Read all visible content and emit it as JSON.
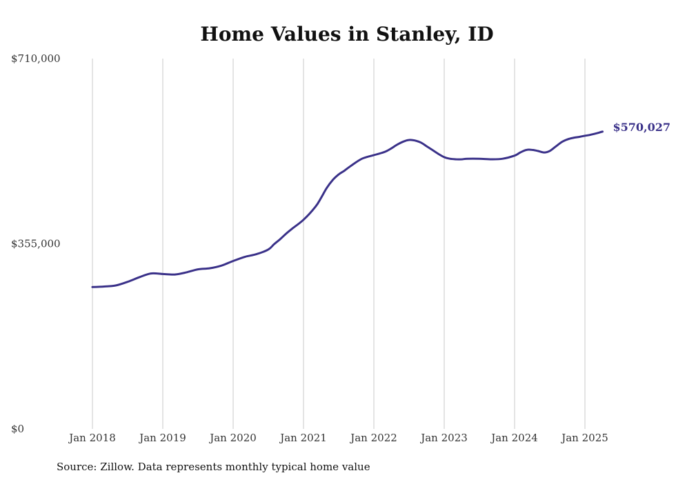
{
  "chart_data": {
    "type": "line",
    "title": "Home Values in Stanley, ID",
    "xlabel": "",
    "ylabel": "",
    "ylim": [
      0,
      710000
    ],
    "y_ticks": [
      {
        "value": 0,
        "label": "$0"
      },
      {
        "value": 355000,
        "label": "$355,000"
      },
      {
        "value": 710000,
        "label": "$710,000"
      }
    ],
    "x_ticks": [
      {
        "value": 2018.0,
        "label": "Jan 2018"
      },
      {
        "value": 2019.0,
        "label": "Jan 2019"
      },
      {
        "value": 2020.0,
        "label": "Jan 2020"
      },
      {
        "value": 2021.0,
        "label": "Jan 2021"
      },
      {
        "value": 2022.0,
        "label": "Jan 2022"
      },
      {
        "value": 2023.0,
        "label": "Jan 2023"
      },
      {
        "value": 2024.0,
        "label": "Jan 2024"
      },
      {
        "value": 2025.0,
        "label": "Jan 2025"
      }
    ],
    "xlim": [
      2018.0,
      2025.25
    ],
    "grid": {
      "vertical": true,
      "horizontal": false
    },
    "line_color": "#3a3189",
    "end_label": "$570,027",
    "x": [
      2018.0,
      2018.17,
      2018.33,
      2018.5,
      2018.67,
      2018.83,
      2019.0,
      2019.17,
      2019.33,
      2019.5,
      2019.67,
      2019.83,
      2020.0,
      2020.17,
      2020.33,
      2020.5,
      2020.58,
      2020.67,
      2020.75,
      2020.83,
      2021.0,
      2021.17,
      2021.25,
      2021.33,
      2021.42,
      2021.5,
      2021.58,
      2021.67,
      2021.83,
      2022.0,
      2022.08,
      2022.17,
      2022.25,
      2022.33,
      2022.42,
      2022.5,
      2022.58,
      2022.67,
      2022.75,
      2022.83,
      2022.92,
      2023.0,
      2023.08,
      2023.17,
      2023.25,
      2023.33,
      2023.5,
      2023.67,
      2023.83,
      2024.0,
      2024.08,
      2024.17,
      2024.25,
      2024.33,
      2024.42,
      2024.5,
      2024.58,
      2024.67,
      2024.75,
      2024.83,
      2024.92,
      2025.0,
      2025.08,
      2025.17,
      2025.25
    ],
    "y": [
      272000,
      273000,
      275000,
      282000,
      291000,
      298000,
      297000,
      296000,
      300000,
      306000,
      308000,
      313000,
      322000,
      330000,
      335000,
      344000,
      354000,
      364000,
      374000,
      383000,
      401000,
      426000,
      443000,
      462000,
      478000,
      488000,
      495000,
      504000,
      518000,
      525000,
      528000,
      532000,
      538000,
      545000,
      551000,
      554000,
      553000,
      549000,
      542000,
      535000,
      527000,
      521000,
      518000,
      517000,
      517000,
      518000,
      518000,
      517000,
      518000,
      524000,
      530000,
      535000,
      535000,
      533000,
      530000,
      533000,
      541000,
      550000,
      555000,
      558000,
      560000,
      562000,
      564000,
      567000,
      570027
    ]
  },
  "source_text": "Source: Zillow. Data represents monthly typical home value"
}
